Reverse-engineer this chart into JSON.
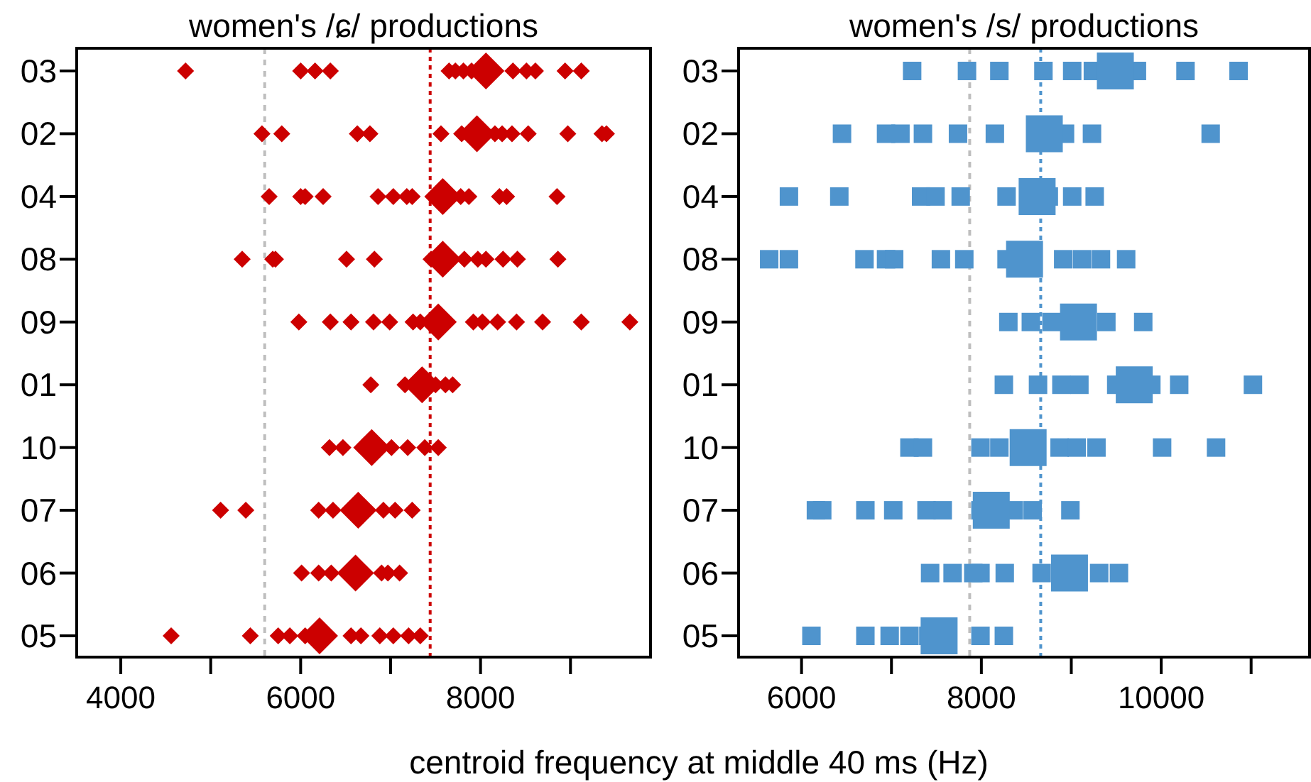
{
  "chart_data": [
    {
      "type": "scatter",
      "title": "women's /ɕ/ productions",
      "xlabel": "centroid frequency at middle 40 ms (Hz)",
      "orientation": "horizontal",
      "categories": [
        "03",
        "02",
        "04",
        "08",
        "09",
        "01",
        "10",
        "07",
        "06",
        "05"
      ],
      "xlim": [
        3510,
        9890
      ],
      "xticks": [
        4000,
        {
          "value": 5000,
          "label": null
        },
        6000,
        {
          "value": 7000,
          "label": null
        },
        8000,
        {
          "value": 9000,
          "label": null
        }
      ],
      "marker": "diamond",
      "grid": false,
      "ref_lines": [
        {
          "axis": "x",
          "value": 5600,
          "color": "#bebebe",
          "line_style": "dashed"
        },
        {
          "axis": "x",
          "value": 7440,
          "color": "#cc0000",
          "line_style": "dotted"
        }
      ],
      "series": [
        {
          "color": "#cc0000",
          "x": [
            "03",
            "03",
            "03",
            "03",
            "03",
            "03",
            "03",
            "03",
            "03",
            "03",
            "03",
            "03",
            "03",
            "02",
            "02",
            "02",
            "02",
            "02",
            "02",
            "02",
            "02",
            "02",
            "02",
            "02",
            "02",
            "02",
            "04",
            "04",
            "04",
            "04",
            "04",
            "04",
            "04",
            "04",
            "04",
            "04",
            "04",
            "04",
            "04",
            "08",
            "08",
            "08",
            "08",
            "08",
            "08",
            "08",
            "08",
            "08",
            "08",
            "08",
            "08",
            "09",
            "09",
            "09",
            "09",
            "09",
            "09",
            "09",
            "09",
            "09",
            "09",
            "09",
            "09",
            "09",
            "09",
            "01",
            "01",
            "01",
            "01",
            "01",
            "10",
            "10",
            "10",
            "10",
            "10",
            "10",
            "07",
            "07",
            "07",
            "07",
            "07",
            "07",
            "07",
            "06",
            "06",
            "06",
            "06",
            "06",
            "06",
            "05",
            "05",
            "05",
            "05",
            "05",
            "05",
            "05",
            "05",
            "05",
            "05",
            "05"
          ],
          "values": [
            4720,
            6000,
            6160,
            6330,
            7650,
            7720,
            7810,
            7900,
            8360,
            8510,
            8610,
            8940,
            9120,
            5570,
            5790,
            6630,
            6770,
            7560,
            7790,
            8160,
            8240,
            8350,
            8530,
            8970,
            9350,
            9400,
            5650,
            6000,
            6050,
            6250,
            6860,
            7030,
            7180,
            7240,
            7780,
            7870,
            8210,
            8290,
            8850,
            5350,
            5690,
            5720,
            6510,
            6820,
            7450,
            7820,
            7970,
            8060,
            8250,
            8410,
            8860,
            5980,
            6330,
            6560,
            6810,
            6990,
            7250,
            7330,
            7920,
            8020,
            8190,
            8400,
            8690,
            9120,
            9660,
            6780,
            7160,
            7500,
            7610,
            7690,
            6320,
            6470,
            7010,
            7190,
            7380,
            7530,
            5110,
            5390,
            6200,
            6360,
            6920,
            7050,
            7240,
            6010,
            6200,
            6340,
            6900,
            6970,
            7100,
            4560,
            5440,
            5750,
            5880,
            6050,
            6560,
            6670,
            6880,
            7030,
            7200,
            7330
          ]
        },
        {
          "color": "#cc0000",
          "x": [
            "03",
            "02",
            "04",
            "08",
            "09",
            "01",
            "10",
            "07",
            "06",
            "05"
          ],
          "values": [
            8060,
            7960,
            7580,
            7580,
            7530,
            7350,
            6790,
            6640,
            6610,
            6210
          ]
        }
      ]
    },
    {
      "type": "scatter",
      "title": "women's /s/ productions",
      "orientation": "horizontal",
      "categories": [
        "03",
        "02",
        "04",
        "08",
        "09",
        "01",
        "10",
        "07",
        "06",
        "05"
      ],
      "xlim": [
        5300,
        11650
      ],
      "xticks": [
        6000,
        {
          "value": 7000,
          "label": null
        },
        8000,
        {
          "value": 9000,
          "label": null
        },
        10000,
        {
          "value": 11000,
          "label": null
        }
      ],
      "marker": "square",
      "grid": false,
      "ref_lines": [
        {
          "axis": "x",
          "value": 7870,
          "color": "#bebebe",
          "line_style": "dashed"
        },
        {
          "axis": "x",
          "value": 8660,
          "color": "#4f94cd",
          "line_style": "dotted"
        }
      ],
      "series": [
        {
          "color": "#4f94cd",
          "x": [
            "03",
            "03",
            "03",
            "03",
            "03",
            "03",
            "03",
            "03",
            "03",
            "02",
            "02",
            "02",
            "02",
            "02",
            "02",
            "02",
            "02",
            "02",
            "04",
            "04",
            "04",
            "04",
            "04",
            "04",
            "04",
            "04",
            "04",
            "08",
            "08",
            "08",
            "08",
            "08",
            "08",
            "08",
            "08",
            "08",
            "08",
            "08",
            "08",
            "09",
            "09",
            "09",
            "09",
            "09",
            "01",
            "01",
            "01",
            "01",
            "01",
            "01",
            "01",
            "01",
            "10",
            "10",
            "10",
            "10",
            "10",
            "10",
            "10",
            "10",
            "10",
            "07",
            "07",
            "07",
            "07",
            "07",
            "07",
            "07",
            "07",
            "07",
            "07",
            "06",
            "06",
            "06",
            "06",
            "06",
            "06",
            "06",
            "06",
            "05",
            "05",
            "05",
            "05",
            "05",
            "05",
            "05"
          ],
          "values": [
            7230,
            7840,
            8200,
            8690,
            9010,
            9240,
            9730,
            10270,
            10860,
            6450,
            6940,
            7100,
            7350,
            7740,
            8150,
            8930,
            9230,
            10550,
            5860,
            6420,
            7330,
            7490,
            7770,
            8280,
            8750,
            9010,
            9260,
            5640,
            5860,
            6700,
            6940,
            7030,
            7550,
            7810,
            8280,
            8910,
            9120,
            9330,
            9610,
            8300,
            8550,
            8780,
            9390,
            9800,
            8250,
            8630,
            8890,
            9090,
            9500,
            9890,
            10200,
            11020,
            7200,
            7350,
            7990,
            8200,
            8870,
            9060,
            9280,
            10010,
            10610,
            6160,
            6230,
            6710,
            7020,
            7390,
            7570,
            7990,
            8360,
            8570,
            8990,
            7430,
            7680,
            7910,
            7990,
            8260,
            8670,
            9310,
            9530,
            6110,
            6710,
            6980,
            7200,
            7410,
            7990,
            8250
          ]
        },
        {
          "color": "#4f94cd",
          "x": [
            "03",
            "02",
            "04",
            "08",
            "09",
            "01",
            "10",
            "07",
            "06",
            "05"
          ],
          "values": [
            9490,
            8700,
            8620,
            8480,
            9080,
            9700,
            8520,
            8110,
            8980,
            7530
          ]
        }
      ]
    }
  ]
}
